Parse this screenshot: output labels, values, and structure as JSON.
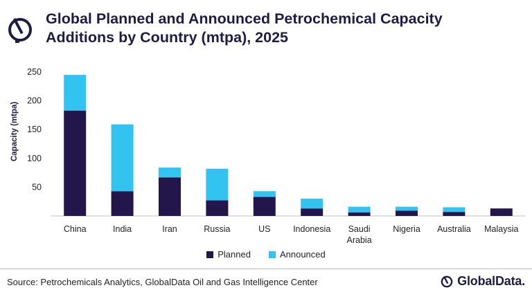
{
  "title": "Global Planned and Announced Petrochemical Capacity Additions by Country (mtpa), 2025",
  "source": "Source: Petrochemicals Analytics, GlobalData Oil and Gas Intelligence Center",
  "brand": "GlobalData.",
  "colors": {
    "planned": "#23164a",
    "announced": "#33c3f0",
    "text": "#1e1b45"
  },
  "chart_data": {
    "type": "bar",
    "stacked": true,
    "ylabel": "Capacity (mtpa)",
    "xlabel": "",
    "ylim": [
      0,
      250
    ],
    "yticks": [
      50,
      100,
      150,
      200,
      250
    ],
    "categories": [
      "China",
      "India",
      "Iran",
      "Russia",
      "US",
      "Indonesia",
      "Saudi Arabia",
      "Nigeria",
      "Australia",
      "Malaysia"
    ],
    "category_lines": [
      [
        "China"
      ],
      [
        "India"
      ],
      [
        "Iran"
      ],
      [
        "Russia"
      ],
      [
        "US"
      ],
      [
        "Indonesia"
      ],
      [
        "Saudi",
        "Arabia"
      ],
      [
        "Nigeria"
      ],
      [
        "Australia"
      ],
      [
        "Malaysia"
      ]
    ],
    "series": [
      {
        "name": "Planned",
        "values": [
          183,
          43,
          67,
          27,
          33,
          13,
          6,
          9,
          7,
          13
        ]
      },
      {
        "name": "Announced",
        "values": [
          62,
          116,
          17,
          55,
          10,
          17,
          10,
          7,
          8,
          0
        ]
      }
    ],
    "legend": "bottom"
  }
}
